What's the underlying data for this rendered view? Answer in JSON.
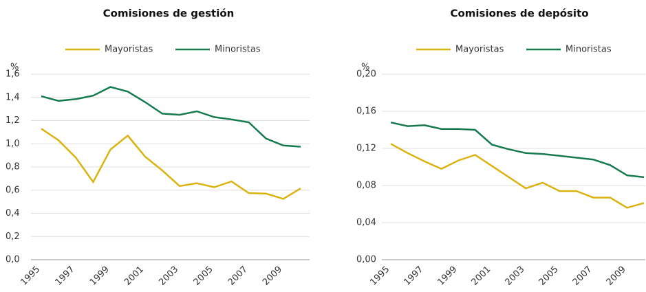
{
  "chart_data": [
    {
      "type": "line",
      "title": "Comisiones de gestión",
      "y_label": "%",
      "x": [
        1995,
        1996,
        1997,
        1998,
        1999,
        2000,
        2001,
        2002,
        2003,
        2004,
        2005,
        2006,
        2007,
        2008,
        2009,
        2010
      ],
      "xlim": [
        1995,
        2010
      ],
      "xticks": [
        1995,
        1997,
        1999,
        2001,
        2003,
        2005,
        2007,
        2009
      ],
      "ylim": [
        0,
        1.6
      ],
      "yticks": [
        {
          "value": 0,
          "label": "0,0"
        },
        {
          "value": 0.2,
          "label": "0,2"
        },
        {
          "value": 0.4,
          "label": "0,4"
        },
        {
          "value": 0.6,
          "label": "0,6"
        },
        {
          "value": 0.8,
          "label": "0,8"
        },
        {
          "value": 1.0,
          "label": "1,0"
        },
        {
          "value": 1.2,
          "label": "1,2"
        },
        {
          "value": 1.4,
          "label": "1,4"
        },
        {
          "value": 1.6,
          "label": "1,6"
        }
      ],
      "grid": true,
      "series": [
        {
          "name": "Mayoristas",
          "color": "#d9b310",
          "values": [
            1.13,
            1.03,
            0.88,
            0.67,
            0.95,
            1.07,
            0.89,
            0.77,
            0.635,
            0.66,
            0.625,
            0.675,
            0.575,
            0.57,
            0.525,
            0.615
          ]
        },
        {
          "name": "Minoristas",
          "color": "#167a4e",
          "values": [
            1.41,
            1.37,
            1.385,
            1.415,
            1.49,
            1.45,
            1.36,
            1.26,
            1.25,
            1.28,
            1.23,
            1.21,
            1.185,
            1.045,
            0.985,
            0.975
          ]
        }
      ]
    },
    {
      "type": "line",
      "title": "Comisiones de depósito",
      "y_label": "%",
      "x": [
        1995,
        1996,
        1997,
        1998,
        1999,
        2000,
        2001,
        2002,
        2003,
        2004,
        2005,
        2006,
        2007,
        2008,
        2009,
        2010
      ],
      "xlim": [
        1995,
        2010
      ],
      "xticks": [
        1995,
        1997,
        1999,
        2001,
        2003,
        2005,
        2007,
        2009
      ],
      "ylim": [
        0,
        0.2
      ],
      "yticks": [
        {
          "value": 0,
          "label": "0,00"
        },
        {
          "value": 0.04,
          "label": "0,04"
        },
        {
          "value": 0.08,
          "label": "0,08"
        },
        {
          "value": 0.12,
          "label": "0,12"
        },
        {
          "value": 0.16,
          "label": "0,16"
        },
        {
          "value": 0.2,
          "label": "0,20"
        }
      ],
      "grid": true,
      "series": [
        {
          "name": "Mayoristas",
          "color": "#d9b310",
          "values": [
            0.125,
            0.115,
            0.106,
            0.098,
            0.107,
            0.113,
            0.101,
            0.089,
            0.077,
            0.083,
            0.074,
            0.074,
            0.067,
            0.067,
            0.056,
            0.061
          ]
        },
        {
          "name": "Minoristas",
          "color": "#167a4e",
          "values": [
            0.148,
            0.144,
            0.145,
            0.141,
            0.141,
            0.14,
            0.124,
            0.119,
            0.115,
            0.114,
            0.112,
            0.11,
            0.108,
            0.102,
            0.091,
            0.089
          ]
        }
      ]
    }
  ]
}
